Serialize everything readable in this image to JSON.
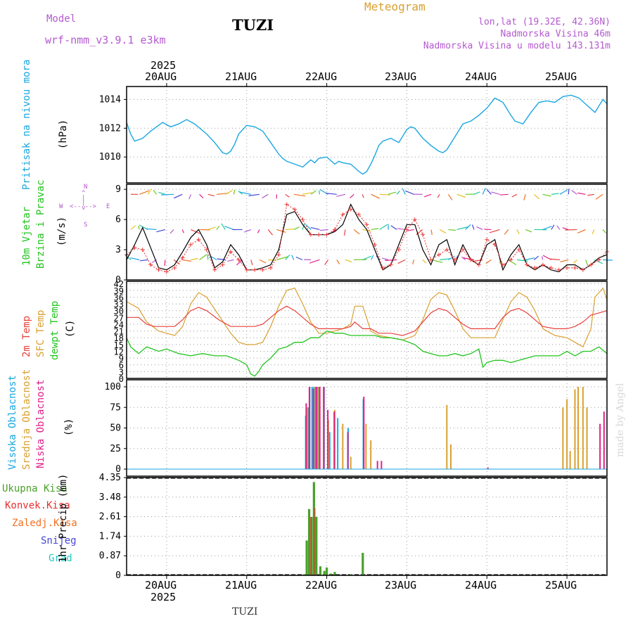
{
  "header": {
    "model_label": "Model",
    "model_name": "wrf-nmm_v3.9.1  e3km",
    "station": "TUZI",
    "meteogram": "Meteogram",
    "lonlat": "lon,lat (19.32E, 42.36N)",
    "elevation": "Nadmorska Visina 46m",
    "model_elevation": "Nadmorska Visina u modelu 143.131m",
    "footer_station": "TUZI",
    "credit": "made by Angel"
  },
  "colors": {
    "pressure": "#1aa7e0",
    "wind_speed": "#000000",
    "gust": "#ea3c3c",
    "t2m": "#e8413c",
    "sfc": "#d9a030",
    "dew": "#22c41e",
    "high_cloud": "#1aa7e0",
    "mid_cloud": "#d9a030",
    "low_cloud": "#e0208a",
    "total_precip": "#4aa02a",
    "conv_precip": "#e83030",
    "frz_precip": "#f07020",
    "snow": "#4545d8",
    "graupel": "#20c8c0",
    "purple": "#b45ad0"
  },
  "chart_data": [
    {
      "type": "line",
      "title": "Pritisak na nivou mora",
      "ylabel": "(hPa)",
      "x_dates": [
        "20AUG",
        "21AUG",
        "22AUG",
        "23AUG",
        "24AUG",
        "25AUG"
      ],
      "year": "2025",
      "yticks": [
        1010,
        1012,
        1014
      ],
      "ylim": [
        1008.2,
        1014.9
      ],
      "xlim_days": [
        -0.5,
        5.5
      ],
      "series": [
        {
          "name": "Pressure",
          "x": [
            -0.5,
            -0.45,
            -0.4,
            -0.3,
            -0.2,
            -0.05,
            0.05,
            0.15,
            0.25,
            0.35,
            0.5,
            0.6,
            0.7,
            0.75,
            0.8,
            0.85,
            0.9,
            1.0,
            1.1,
            1.2,
            1.3,
            1.4,
            1.45,
            1.5,
            1.6,
            1.7,
            1.8,
            1.85,
            1.9,
            2.0,
            2.1,
            2.15,
            2.2,
            2.3,
            2.4,
            2.45,
            2.5,
            2.55,
            2.6,
            2.65,
            2.7,
            2.8,
            2.9,
            3.0,
            3.05,
            3.1,
            3.2,
            3.3,
            3.4,
            3.45,
            3.5,
            3.6,
            3.7,
            3.8,
            3.9,
            4.0,
            4.1,
            4.2,
            4.3,
            4.35,
            4.45,
            4.55,
            4.65,
            4.75,
            4.85,
            4.95,
            5.05,
            5.15,
            5.25,
            5.35,
            5.45,
            5.5
          ],
          "values": [
            1012.4,
            1011.6,
            1011.1,
            1011.3,
            1011.8,
            1012.4,
            1012.1,
            1012.3,
            1012.6,
            1012.3,
            1011.6,
            1011.0,
            1010.3,
            1010.2,
            1010.4,
            1010.9,
            1011.6,
            1012.2,
            1012.1,
            1011.8,
            1011.0,
            1010.2,
            1009.9,
            1009.7,
            1009.5,
            1009.3,
            1009.8,
            1009.6,
            1009.9,
            1010.0,
            1009.5,
            1009.7,
            1009.6,
            1009.5,
            1009.0,
            1008.8,
            1009.0,
            1009.5,
            1010.1,
            1010.8,
            1011.1,
            1011.3,
            1011.0,
            1011.9,
            1012.1,
            1012.0,
            1011.3,
            1010.8,
            1010.4,
            1010.3,
            1010.5,
            1011.4,
            1012.3,
            1012.5,
            1012.9,
            1013.4,
            1014.1,
            1013.8,
            1012.9,
            1012.5,
            1012.3,
            1013.1,
            1013.8,
            1013.9,
            1013.8,
            1014.2,
            1014.3,
            1014.1,
            1013.6,
            1013.1,
            1014.0,
            1013.7
          ]
        }
      ]
    },
    {
      "type": "line",
      "title": "10m Vjetar Brzina i Pravac",
      "ylabel": "(m/s)",
      "compass": [
        "N",
        "W",
        "E",
        "S"
      ],
      "yticks": [
        0,
        3,
        6,
        9
      ],
      "ylim": [
        0,
        9.5
      ],
      "series": [
        {
          "name": "Speed",
          "x": [
            -0.5,
            -0.4,
            -0.3,
            -0.2,
            -0.1,
            0.0,
            0.1,
            0.2,
            0.3,
            0.4,
            0.5,
            0.6,
            0.7,
            0.8,
            0.9,
            1.0,
            1.1,
            1.2,
            1.3,
            1.4,
            1.5,
            1.6,
            1.7,
            1.8,
            1.9,
            2.0,
            2.1,
            2.2,
            2.3,
            2.4,
            2.5,
            2.6,
            2.7,
            2.8,
            2.9,
            3.0,
            3.1,
            3.2,
            3.3,
            3.4,
            3.5,
            3.6,
            3.7,
            3.8,
            3.9,
            4.0,
            4.1,
            4.2,
            4.3,
            4.4,
            4.5,
            4.6,
            4.7,
            4.8,
            4.9,
            5.0,
            5.1,
            5.2,
            5.3,
            5.4,
            5.5
          ],
          "values": [
            2.0,
            3.5,
            5.2,
            3.2,
            1.2,
            1.0,
            1.5,
            2.8,
            4.2,
            5.0,
            3.5,
            1.2,
            1.8,
            3.5,
            2.5,
            1.0,
            1.0,
            1.2,
            1.5,
            3.0,
            6.5,
            6.8,
            5.5,
            4.5,
            4.5,
            4.5,
            4.8,
            5.5,
            7.5,
            6.0,
            5.0,
            3.0,
            1.0,
            1.5,
            3.5,
            5.5,
            5.5,
            3.0,
            1.5,
            3.5,
            4.0,
            1.5,
            3.5,
            2.0,
            1.5,
            3.5,
            4.0,
            1.0,
            2.5,
            3.5,
            1.5,
            1.0,
            1.5,
            1.0,
            0.8,
            1.5,
            1.5,
            1.0,
            1.5,
            2.2,
            2.5
          ]
        },
        {
          "name": "Gust",
          "x": [
            -0.5,
            -0.4,
            -0.3,
            -0.2,
            -0.1,
            0.0,
            0.1,
            0.2,
            0.3,
            0.4,
            0.5,
            0.6,
            0.7,
            0.8,
            0.9,
            1.0,
            1.1,
            1.2,
            1.3,
            1.4,
            1.5,
            1.6,
            1.7,
            1.8,
            1.9,
            2.0,
            2.1,
            2.2,
            2.3,
            2.4,
            2.5,
            2.6,
            2.7,
            2.8,
            2.9,
            3.0,
            3.1,
            3.2,
            3.3,
            3.4,
            3.5,
            3.6,
            3.7,
            3.8,
            3.9,
            4.0,
            4.1,
            4.2,
            4.3,
            4.4,
            4.5,
            4.6,
            4.7,
            4.8,
            4.9,
            5.0,
            5.1,
            5.2,
            5.3,
            5.4,
            5.5
          ],
          "values": [
            2.5,
            3.2,
            3.0,
            1.5,
            1.0,
            0.8,
            1.2,
            2.2,
            3.5,
            4.0,
            3.0,
            1.0,
            1.5,
            2.8,
            2.0,
            1.0,
            1.0,
            1.0,
            1.2,
            2.5,
            7.5,
            7.0,
            6.0,
            4.5,
            4.5,
            4.5,
            5.0,
            6.5,
            7.0,
            6.5,
            5.5,
            3.5,
            1.2,
            1.5,
            3.0,
            5.0,
            6.0,
            4.5,
            2.0,
            2.5,
            3.0,
            2.0,
            3.0,
            2.0,
            1.5,
            4.0,
            3.5,
            1.5,
            2.0,
            3.0,
            1.5,
            1.2,
            1.5,
            1.2,
            1.0,
            1.2,
            1.2,
            1.0,
            1.5,
            2.0,
            2.8
          ]
        }
      ]
    },
    {
      "type": "line",
      "title": "2m Temp / SFC Temp / dewpt Temp",
      "ylabel": "(C)",
      "yticks": [
        0,
        3,
        6,
        9,
        12,
        15,
        18,
        21,
        24,
        27,
        30,
        33,
        36,
        39,
        42
      ],
      "ylim": [
        0,
        43
      ],
      "series": [
        {
          "name": "2m Temp",
          "x": [
            -0.5,
            -0.35,
            -0.25,
            -0.15,
            0.0,
            0.1,
            0.2,
            0.3,
            0.4,
            0.5,
            0.65,
            0.8,
            0.9,
            1.0,
            1.1,
            1.2,
            1.3,
            1.4,
            1.5,
            1.6,
            1.7,
            1.8,
            1.9,
            2.0,
            2.1,
            2.2,
            2.3,
            2.35,
            2.45,
            2.55,
            2.65,
            2.8,
            2.95,
            3.1,
            3.2,
            3.3,
            3.4,
            3.5,
            3.6,
            3.7,
            3.8,
            3.9,
            4.1,
            4.2,
            4.3,
            4.4,
            4.5,
            4.6,
            4.7,
            4.85,
            5.0,
            5.1,
            5.2,
            5.3,
            5.4,
            5.5
          ],
          "values": [
            27,
            27,
            24,
            23,
            23,
            23,
            26,
            30,
            31.5,
            30,
            26,
            23,
            23,
            23,
            23,
            24,
            27,
            30,
            32,
            30,
            27,
            24,
            22,
            22,
            22,
            22,
            23,
            25,
            22,
            22,
            20,
            20,
            19,
            21,
            25,
            29,
            31,
            30,
            27,
            24,
            22,
            22,
            22,
            27,
            30,
            31,
            29,
            26,
            23,
            22,
            22,
            23,
            25,
            28,
            29,
            30
          ]
        },
        {
          "name": "SFC Temp",
          "x": [
            -0.5,
            -0.35,
            -0.25,
            -0.1,
            0.0,
            0.1,
            0.2,
            0.3,
            0.4,
            0.5,
            0.65,
            0.8,
            0.9,
            1.0,
            1.1,
            1.2,
            1.3,
            1.4,
            1.5,
            1.6,
            1.7,
            1.8,
            1.9,
            2.0,
            2.1,
            2.2,
            2.3,
            2.35,
            2.45,
            2.55,
            2.65,
            2.8,
            2.95,
            3.1,
            3.2,
            3.3,
            3.4,
            3.5,
            3.6,
            3.7,
            3.8,
            3.9,
            4.1,
            4.2,
            4.3,
            4.4,
            4.5,
            4.6,
            4.7,
            4.85,
            5.0,
            5.1,
            5.2,
            5.3,
            5.35,
            5.45,
            5.5
          ],
          "values": [
            34,
            31,
            25,
            21,
            20,
            19,
            23,
            33,
            38,
            36,
            28,
            20,
            16,
            15,
            15,
            16,
            23,
            32,
            39,
            40,
            33,
            25,
            20,
            20,
            21,
            22,
            24,
            32,
            32,
            21,
            19,
            18,
            17,
            19,
            26,
            35,
            38,
            37,
            30,
            22,
            18,
            18,
            18,
            26,
            34,
            38,
            36,
            30,
            22,
            19,
            18,
            16,
            14,
            22,
            36,
            40,
            35
          ]
        },
        {
          "name": "Dewpoint",
          "x": [
            -0.5,
            -0.45,
            -0.35,
            -0.25,
            -0.1,
            0.0,
            0.15,
            0.3,
            0.45,
            0.6,
            0.75,
            0.9,
            1.0,
            1.05,
            1.1,
            1.15,
            1.2,
            1.3,
            1.4,
            1.5,
            1.6,
            1.7,
            1.8,
            1.9,
            2.0,
            2.1,
            2.2,
            2.3,
            2.4,
            2.5,
            2.6,
            2.7,
            2.8,
            2.95,
            3.1,
            3.2,
            3.3,
            3.4,
            3.5,
            3.6,
            3.7,
            3.8,
            3.9,
            3.95,
            4.0,
            4.1,
            4.2,
            4.3,
            4.4,
            4.5,
            4.6,
            4.7,
            4.8,
            4.9,
            5.0,
            5.1,
            5.2,
            5.3,
            5.4,
            5.5
          ],
          "values": [
            18,
            14,
            11,
            14,
            12,
            13,
            11,
            10,
            11,
            10,
            10,
            8,
            6,
            2,
            1,
            3,
            6,
            9,
            13,
            14,
            16,
            16,
            18,
            18,
            21,
            20,
            20,
            19,
            19,
            19,
            19,
            18,
            18,
            17,
            15,
            12,
            11,
            10,
            10,
            11,
            10,
            11,
            13,
            5,
            7,
            8,
            8,
            7,
            8,
            9,
            10,
            10,
            10,
            10,
            12,
            10,
            12,
            12,
            14,
            11
          ]
        }
      ]
    },
    {
      "type": "bar",
      "title": "Visoka / Srednja / Niska Oblacnost",
      "ylabel": "(%)",
      "yticks": [
        0,
        25,
        50,
        75,
        100
      ],
      "ylim": [
        0,
        100
      ],
      "series": [
        {
          "name": "Visoka Oblacnost",
          "x": [
            1.75,
            1.78,
            1.8,
            1.83,
            1.87,
            1.91,
            1.98,
            2.05,
            2.15,
            2.28,
            2.47
          ],
          "values": [
            65,
            75,
            100,
            100,
            100,
            100,
            100,
            45,
            62,
            50,
            85
          ]
        },
        {
          "name": "Srednja Oblacnost",
          "x": [
            1.76,
            1.84,
            1.89,
            1.96,
            2.02,
            2.1,
            2.2,
            2.3,
            2.49,
            2.55,
            3.5,
            3.55,
            4.95,
            5.0,
            5.04,
            5.1,
            5.14,
            5.2,
            5.25
          ],
          "values": [
            75,
            100,
            100,
            100,
            60,
            72,
            55,
            15,
            55,
            35,
            78,
            30,
            75,
            85,
            22,
            97,
            100,
            100,
            75
          ]
        },
        {
          "name": "Niska Oblacnost",
          "x": [
            1.73,
            1.77,
            1.82,
            1.86,
            1.9,
            1.95,
            2.0,
            2.08,
            2.25,
            2.45,
            2.62,
            2.67,
            4.0,
            5.4,
            5.45
          ],
          "values": [
            80,
            100,
            98,
            100,
            100,
            100,
            72,
            70,
            45,
            88,
            10,
            10,
            2,
            55,
            70
          ]
        }
      ]
    },
    {
      "type": "bar",
      "title": "1hr Precip",
      "ylabel": "(mm)",
      "legend": [
        "Ukupna Kisa",
        "Konvek.Kisa",
        "Zaledj.Kisa",
        "Snijeg",
        "Grad"
      ],
      "ytick_labels": [
        "0",
        "0.87",
        "1.74",
        "2.61",
        "3.48",
        "4.35"
      ],
      "ylim": [
        0,
        4.35
      ],
      "series": [
        {
          "name": "Ukupna Kisa",
          "x": [
            1.72,
            1.75,
            1.78,
            1.81,
            1.84,
            1.87,
            1.92,
            1.97,
            2.0,
            2.05,
            2.1,
            2.3,
            2.45
          ],
          "values": [
            0.05,
            1.55,
            2.95,
            2.6,
            4.15,
            2.6,
            0.4,
            0.2,
            0.35,
            0.08,
            0.15,
            0.05,
            1.0
          ]
        },
        {
          "name": "Konvek.Kisa",
          "x": [
            1.8,
            1.85
          ],
          "values": [
            2.6,
            3.0
          ]
        }
      ]
    }
  ]
}
